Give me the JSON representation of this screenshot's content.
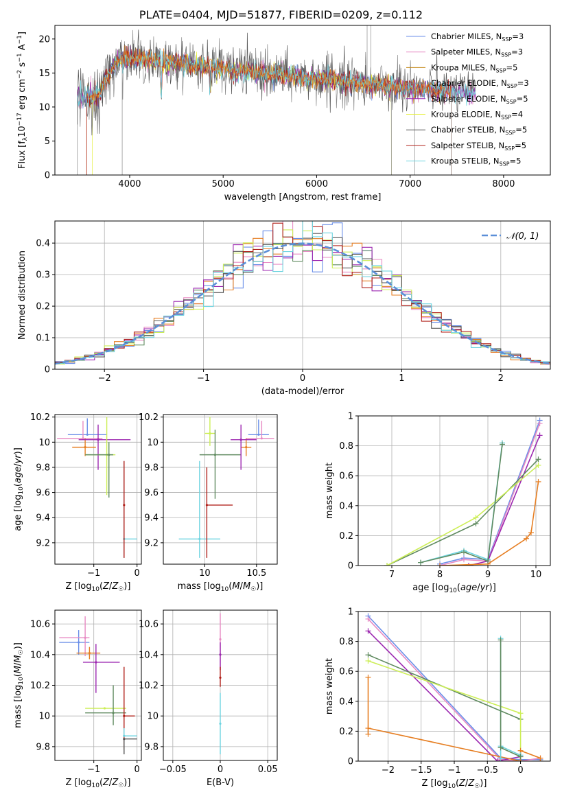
{
  "figure_title": "PLATE=0404, MJD=51877, FIBERID=0209, z=0.112",
  "colors": {
    "chabrier_miles": "#6a8ee8",
    "salpeter_miles": "#e78ac3",
    "kroupa_miles": "#c58b1f",
    "chabrier_elodie": "#8a8a8a",
    "salpeter_elodie": "#9c27b0",
    "kroupa_elodie": "#e6f03c",
    "chabrier_stelib": "#555555",
    "salpeter_stelib": "#b0201a",
    "kroupa_stelib": "#6fd4e0",
    "normal": "#5b8fd8",
    "grid": "#b0b0b0",
    "orange": "#e67e22",
    "green": "#5f8a5f",
    "lime": "#ccee55"
  },
  "chart_data": [
    {
      "type": "line",
      "id": "spectrum",
      "xlabel": "wavelength [Angstrom, rest frame]",
      "ylabel": "Flux [f_λ10^-17 erg cm^-2 s^-1 A^-1]",
      "xlim": [
        3200,
        8500
      ],
      "ylim": [
        0,
        22
      ],
      "xticks": [
        4000,
        5000,
        6000,
        7000,
        8000
      ],
      "yticks": [
        0,
        5,
        10,
        15,
        20
      ],
      "grid": false,
      "legend_position": "top-right",
      "legend": [
        "Chabrier MILES, N_SSP=3",
        "Salpeter MILES, N_SSP=3",
        "Kroupa MILES, N_SSP=5",
        "Chabrier ELODIE, N_SSP=3",
        "Salpeter ELODIE, N_SSP=5",
        "Kroupa ELODIE, N_SSP=4",
        "Chabrier STELIB, N_SSP=5",
        "Salpeter STELIB, N_SSP=5",
        "Kroupa STELIB, N_SSP=5"
      ],
      "continuum": {
        "x": [
          3450,
          3550,
          3650,
          3750,
          3850,
          3950,
          4100,
          4300,
          4500,
          4800,
          5200,
          5600,
          6000,
          6400,
          6800,
          7200,
          7600
        ],
        "y": [
          11.8,
          11.5,
          11.8,
          14.0,
          16.5,
          17.3,
          17.0,
          16.8,
          16.5,
          16.0,
          15.3,
          14.7,
          14.1,
          13.6,
          13.0,
          12.5,
          12.1
        ]
      }
    },
    {
      "type": "line",
      "id": "residual_histogram",
      "xlabel": "(data-model)/error",
      "ylabel": "Normed distribution",
      "xlim": [
        -2.5,
        2.5
      ],
      "ylim": [
        0,
        0.47
      ],
      "xticks": [
        -2,
        -1,
        0,
        1,
        2
      ],
      "yticks": [
        0.0,
        0.1,
        0.2,
        0.3,
        0.4
      ],
      "grid": true,
      "legend_position": "top-right",
      "legend": [
        "𝒩(0, 1)"
      ],
      "bin_width": 0.1
    },
    {
      "type": "scatter",
      "id": "age_vs_Z",
      "xlabel": "Z [log10(Z/Z☉)]",
      "ylabel": "age [log10(age/yr)]",
      "xlim": [
        -1.9,
        0.1
      ],
      "ylim": [
        9.03,
        10.22
      ],
      "xticks": [
        -1,
        0
      ],
      "yticks": [
        9.2,
        9.4,
        9.6,
        9.8,
        10.0,
        10.2
      ],
      "grid": true,
      "points": [
        {
          "x": -1.15,
          "y": 10.06,
          "xerr": [
            0.45,
            0.45
          ],
          "yerr": [
            0.0,
            0.13
          ],
          "color": "chabrier_miles"
        },
        {
          "x": -1.25,
          "y": 10.03,
          "xerr": [
            0.6,
            0.45
          ],
          "yerr": [
            0.0,
            0.14
          ],
          "color": "salpeter_miles"
        },
        {
          "x": -1.2,
          "y": 9.96,
          "xerr": [
            0.3,
            0.25
          ],
          "yerr": [
            0.07,
            0.07
          ],
          "color": "orange"
        },
        {
          "x": -0.9,
          "y": 10.02,
          "xerr": [
            0.45,
            0.75
          ],
          "yerr": [
            0.24,
            0.12
          ],
          "color": "salpeter_elodie"
        },
        {
          "x": -0.7,
          "y": 9.9,
          "xerr": [
            0.5,
            0.2
          ],
          "yerr": [
            0.32,
            0.3
          ],
          "color": "lime"
        },
        {
          "x": -0.65,
          "y": 9.9,
          "xerr": [
            0.55,
            0.1
          ],
          "yerr": [
            0.34,
            0.1
          ],
          "color": "green"
        },
        {
          "x": -0.3,
          "y": 9.23,
          "xerr": [
            0.0,
            0.3
          ],
          "yerr": [
            0.15,
            0.62
          ],
          "color": "kroupa_stelib"
        },
        {
          "x": -0.3,
          "y": 9.5,
          "xerr": [
            0.0,
            0.0
          ],
          "yerr": [
            0.42,
            0.35
          ],
          "color": "salpeter_stelib"
        }
      ]
    },
    {
      "type": "scatter",
      "id": "age_vs_mass",
      "xlabel": "mass [log10(M/M☉)]",
      "ylabel": "",
      "xlim": [
        9.6,
        10.7
      ],
      "ylim": [
        9.03,
        10.22
      ],
      "xticks": [
        10.0,
        10.5
      ],
      "yticks": [
        9.2,
        9.4,
        9.6,
        9.8,
        10.0,
        10.2
      ],
      "grid": true,
      "points": [
        {
          "x": 10.05,
          "y": 10.07,
          "xerr": [
            0.05,
            0.05
          ],
          "yerr": [
            0.1,
            0.13
          ],
          "color": "lime"
        },
        {
          "x": 10.1,
          "y": 9.9,
          "xerr": [
            0.15,
            0.25
          ],
          "yerr": [
            0.35,
            0.2
          ],
          "color": "green"
        },
        {
          "x": 10.52,
          "y": 10.06,
          "xerr": [
            0.1,
            0.1
          ],
          "yerr": [
            0.0,
            0.12
          ],
          "color": "chabrier_miles"
        },
        {
          "x": 10.55,
          "y": 10.03,
          "xerr": [
            0.15,
            0.12
          ],
          "yerr": [
            0.0,
            0.14
          ],
          "color": "salpeter_miles"
        },
        {
          "x": 10.4,
          "y": 9.96,
          "xerr": [
            0.05,
            0.05
          ],
          "yerr": [
            0.07,
            0.07
          ],
          "color": "orange"
        },
        {
          "x": 10.35,
          "y": 10.02,
          "xerr": [
            0.1,
            0.15
          ],
          "yerr": [
            0.24,
            0.12
          ],
          "color": "salpeter_elodie"
        },
        {
          "x": 9.95,
          "y": 9.23,
          "xerr": [
            0.2,
            0.2
          ],
          "yerr": [
            0.15,
            0.62
          ],
          "color": "kroupa_stelib"
        },
        {
          "x": 10.02,
          "y": 9.5,
          "xerr": [
            0.0,
            0.25
          ],
          "yerr": [
            0.42,
            0.3
          ],
          "color": "salpeter_stelib"
        }
      ]
    },
    {
      "type": "line",
      "id": "massweight_vs_age",
      "xlabel": "age [log10(age/yr)]",
      "ylabel": "mass weight",
      "xlim": [
        6.3,
        10.3
      ],
      "ylim": [
        0,
        1.0
      ],
      "xticks": [
        7,
        8,
        9,
        10
      ],
      "yticks": [
        0.0,
        0.2,
        0.4,
        0.6,
        0.8,
        1.0
      ],
      "grid": true,
      "series": [
        {
          "color": "chabrier_miles",
          "x": [
            8.0,
            8.5,
            9.0,
            10.08
          ],
          "y": [
            0.01,
            0.05,
            0.04,
            0.97
          ]
        },
        {
          "color": "salpeter_miles",
          "x": [
            8.0,
            8.5,
            9.0,
            10.08
          ],
          "y": [
            0.0,
            0.04,
            0.03,
            0.95
          ]
        },
        {
          "color": "salpeter_elodie",
          "x": [
            8.6,
            9.0,
            10.08
          ],
          "y": [
            0.0,
            0.03,
            0.87
          ]
        },
        {
          "color": "green",
          "x": [
            6.9,
            8.75,
            10.05
          ],
          "y": [
            0.0,
            0.28,
            0.71
          ]
        },
        {
          "color": "lime",
          "x": [
            6.9,
            8.75,
            10.05
          ],
          "y": [
            0.0,
            0.32,
            0.67
          ]
        },
        {
          "color": "orange",
          "x": [
            8.0,
            9.0,
            9.8,
            9.9,
            10.05
          ],
          "y": [
            0.0,
            0.01,
            0.18,
            0.22,
            0.56
          ]
        },
        {
          "color": "kroupa_stelib",
          "x": [
            7.6,
            8.5,
            9.0,
            9.3
          ],
          "y": [
            0.02,
            0.1,
            0.04,
            0.82
          ]
        },
        {
          "color": "green",
          "x": [
            7.6,
            8.5,
            9.0,
            9.3
          ],
          "y": [
            0.02,
            0.09,
            0.03,
            0.81
          ]
        }
      ]
    },
    {
      "type": "scatter",
      "id": "mass_vs_Z",
      "xlabel": "Z [log10(Z/Z☉)]",
      "ylabel": "mass [log10(M/M☉)]",
      "xlim": [
        -1.9,
        0.1
      ],
      "ylim": [
        9.71,
        10.69
      ],
      "xticks": [
        -1,
        0
      ],
      "yticks": [
        9.8,
        10.0,
        10.2,
        10.4,
        10.6
      ],
      "grid": true,
      "points": [
        {
          "x": -1.35,
          "y": 10.48,
          "xerr": [
            0.45,
            0.25
          ],
          "yerr": [
            0.08,
            0.08
          ],
          "color": "chabrier_miles"
        },
        {
          "x": -1.2,
          "y": 10.51,
          "xerr": [
            0.6,
            0.1
          ],
          "yerr": [
            0.12,
            0.14
          ],
          "color": "salpeter_miles"
        },
        {
          "x": -1.1,
          "y": 10.41,
          "xerr": [
            0.3,
            0.25
          ],
          "yerr": [
            0.04,
            0.04
          ],
          "color": "orange"
        },
        {
          "x": -0.95,
          "y": 10.35,
          "xerr": [
            0.3,
            0.55
          ],
          "yerr": [
            0.2,
            0.12
          ],
          "color": "salpeter_elodie"
        },
        {
          "x": -0.75,
          "y": 10.05,
          "xerr": [
            0.45,
            0.5
          ],
          "yerr": [
            0.0,
            0.0
          ],
          "color": "lime"
        },
        {
          "x": -0.55,
          "y": 10.02,
          "xerr": [
            0.65,
            0.3
          ],
          "yerr": [
            0.08,
            0.18
          ],
          "color": "green"
        },
        {
          "x": -0.3,
          "y": 10.0,
          "xerr": [
            0.0,
            0.25
          ],
          "yerr": [
            0.22,
            0.32
          ],
          "color": "salpeter_stelib"
        },
        {
          "x": -0.3,
          "y": 9.87,
          "xerr": [
            0.0,
            0.3
          ],
          "yerr": [
            0.0,
            0.05
          ],
          "color": "kroupa_stelib"
        },
        {
          "x": -0.3,
          "y": 9.85,
          "xerr": [
            0.0,
            0.3
          ],
          "yerr": [
            0.1,
            0.0
          ],
          "color": "chabrier_stelib"
        }
      ]
    },
    {
      "type": "scatter",
      "id": "mass_vs_ebv",
      "xlabel": "E(B-V)",
      "ylabel": "",
      "xlim": [
        -0.06,
        0.06
      ],
      "ylim": [
        9.71,
        10.69
      ],
      "xticks": [
        -0.05,
        0.0,
        0.05
      ],
      "yticks": [
        9.8,
        10.0,
        10.2,
        10.4,
        10.6
      ],
      "grid": true,
      "points": [
        {
          "x": 0.0,
          "y": 10.5,
          "xerr": [
            0.0,
            0.0
          ],
          "yerr": [
            0.2,
            0.17
          ],
          "color": "salpeter_miles"
        },
        {
          "x": 0.0,
          "y": 10.4,
          "xerr": [
            0.0,
            0.0
          ],
          "yerr": [
            0.1,
            0.08
          ],
          "color": "salpeter_elodie"
        },
        {
          "x": 0.0,
          "y": 10.25,
          "xerr": [
            0.0,
            0.0
          ],
          "yerr": [
            0.06,
            0.07
          ],
          "color": "salpeter_stelib"
        },
        {
          "x": 0.0,
          "y": 9.95,
          "xerr": [
            0.0,
            0.0
          ],
          "yerr": [
            0.2,
            0.2
          ],
          "color": "kroupa_stelib"
        }
      ]
    },
    {
      "type": "line",
      "id": "massweight_vs_Z",
      "xlabel": "Z [log10(Z/Z☉)]",
      "ylabel": "mass weight",
      "xlim": [
        -2.45,
        0.45
      ],
      "ylim": [
        0,
        1.0
      ],
      "xticks": [
        -2.0,
        -1.5,
        -1.0,
        -0.5,
        0.0
      ],
      "yticks": [
        0.0,
        0.2,
        0.4,
        0.6,
        0.8,
        1.0
      ],
      "grid": true,
      "series": [
        {
          "color": "chabrier_miles",
          "x": [
            -2.3,
            -0.3,
            0.0,
            0.3
          ],
          "y": [
            0.97,
            0.02,
            0.01,
            0.01
          ]
        },
        {
          "color": "salpeter_miles",
          "x": [
            -2.3,
            -0.3,
            0.0,
            0.3
          ],
          "y": [
            0.95,
            0.01,
            0.0,
            0.02
          ]
        },
        {
          "color": "salpeter_elodie",
          "x": [
            -2.3,
            -0.35,
            0.0,
            0.0
          ],
          "y": [
            0.87,
            0.0,
            0.03,
            0.0
          ]
        },
        {
          "color": "green",
          "x": [
            -2.3,
            0.0
          ],
          "y": [
            0.71,
            0.28
          ]
        },
        {
          "color": "lime",
          "x": [
            -2.3,
            0.0,
            0.0
          ],
          "y": [
            0.67,
            0.32,
            0.0
          ]
        },
        {
          "color": "orange",
          "x": [
            -2.3,
            -2.3,
            -2.3,
            0.0,
            0.0,
            0.3,
            0.3
          ],
          "y": [
            0.56,
            0.18,
            0.22,
            0.0,
            0.07,
            0.02,
            0.0
          ]
        },
        {
          "color": "kroupa_stelib",
          "x": [
            -0.3,
            -0.3,
            -0.3,
            0.0
          ],
          "y": [
            0.82,
            0.02,
            0.1,
            0.04
          ]
        },
        {
          "color": "green",
          "x": [
            -0.3,
            -0.3,
            0.0
          ],
          "y": [
            0.81,
            0.09,
            0.03
          ]
        }
      ]
    }
  ]
}
